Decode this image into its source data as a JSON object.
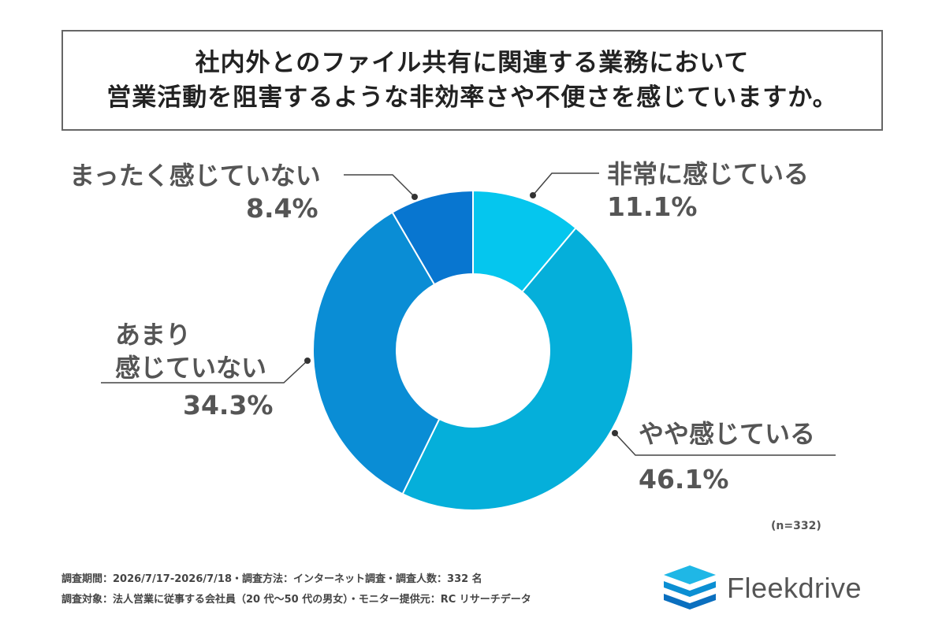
{
  "title": {
    "line1": "社内外とのファイル共有に関連する業務において",
    "line2": "営業活動を阻害するような非効率さや不便さを感じていますか。"
  },
  "chart_data": {
    "type": "pie",
    "donut": true,
    "slices": [
      {
        "label": "非常に感じている",
        "value": 11.1,
        "value_label": "11.1%",
        "color": "#05C6EE"
      },
      {
        "label": "やや感じている",
        "value": 46.1,
        "value_label": "46.1%",
        "color": "#05AFDA"
      },
      {
        "label": "あまり感じていない",
        "label_lines": [
          "あまり",
          "感じていない"
        ],
        "value": 34.3,
        "value_label": "34.3%",
        "color": "#0A8DD5"
      },
      {
        "label": "まったく感じていない",
        "value": 8.4,
        "value_label": "8.4%",
        "color": "#0876D0"
      }
    ],
    "note": "(n=332)"
  },
  "footer": {
    "line1": "調査期間：2026/7/17-2026/7/18・調査方法：インターネット調査・調査人数：332 名",
    "line2": "調査対象：法人営業に従事する会社員（20 代〜50 代の男女）・モニター提供元：RC リサーチデータ"
  },
  "brand": {
    "name": "Fleekdrive",
    "logo_icon": "fleekdrive-logo-icon",
    "logo_colors": [
      "#1FB7E6",
      "#0B8FD3",
      "#0A6FBF"
    ]
  }
}
